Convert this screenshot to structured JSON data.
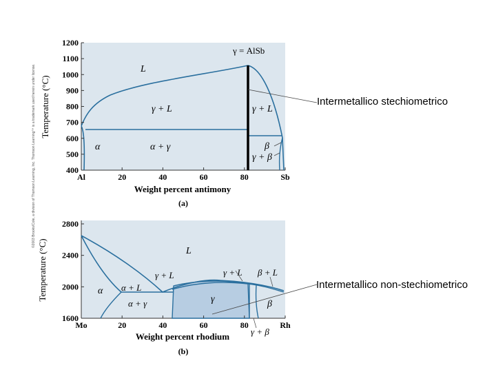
{
  "copyright": "©2003 Brooks/Cole, a division of Thomson Learning, Inc. Thomson Learning™ is a trademark used herein under license.",
  "annotations": {
    "top": "Intermetallico stechiometrico",
    "bottom": "Intermetallico non-stechiometrico"
  },
  "colors": {
    "panel_bg": "#dce6ee",
    "curve": "#2a6f9e",
    "gamma_fill": "#b7cde2",
    "compound_line": "#000000"
  },
  "diagrams": [
    {
      "id": "a",
      "caption": "(a)",
      "ylabel": "Temperature (°C)",
      "xlabel": "Weight percent antimony",
      "y_ticks": [
        "1200",
        "1100",
        "1000",
        "900",
        "800",
        "700",
        "600",
        "500",
        "400"
      ],
      "x_ticks": [
        "Al",
        "20",
        "40",
        "60",
        "80",
        "Sb"
      ],
      "x_range": [
        0,
        100
      ],
      "y_range": [
        400,
        1200
      ],
      "labels": {
        "compound": "γ = AlSb",
        "L": "L",
        "gamma_L_left": "γ + L",
        "gamma_L_right": "γ + L",
        "alpha": "α",
        "alpha_gamma": "α + γ",
        "beta": "β",
        "gamma_beta": "γ + β"
      }
    },
    {
      "id": "b",
      "caption": "(b)",
      "ylabel": "Temperature (°C)",
      "xlabel": "Weight percent rhodium",
      "y_ticks": [
        "2800",
        "2400",
        "2000",
        "1600"
      ],
      "x_ticks": [
        "Mo",
        "20",
        "40",
        "60",
        "80",
        "Rh"
      ],
      "x_range": [
        0,
        100
      ],
      "y_range": [
        1600,
        2800
      ],
      "labels": {
        "L": "L",
        "alpha": "α",
        "alpha_L": "α + L",
        "gamma_L_left": "γ + L",
        "gamma_L_right": "γ + L",
        "beta_L": "β + L",
        "gamma": "γ",
        "alpha_gamma": "α + γ",
        "beta": "β",
        "gamma_beta": "γ + β"
      }
    }
  ]
}
